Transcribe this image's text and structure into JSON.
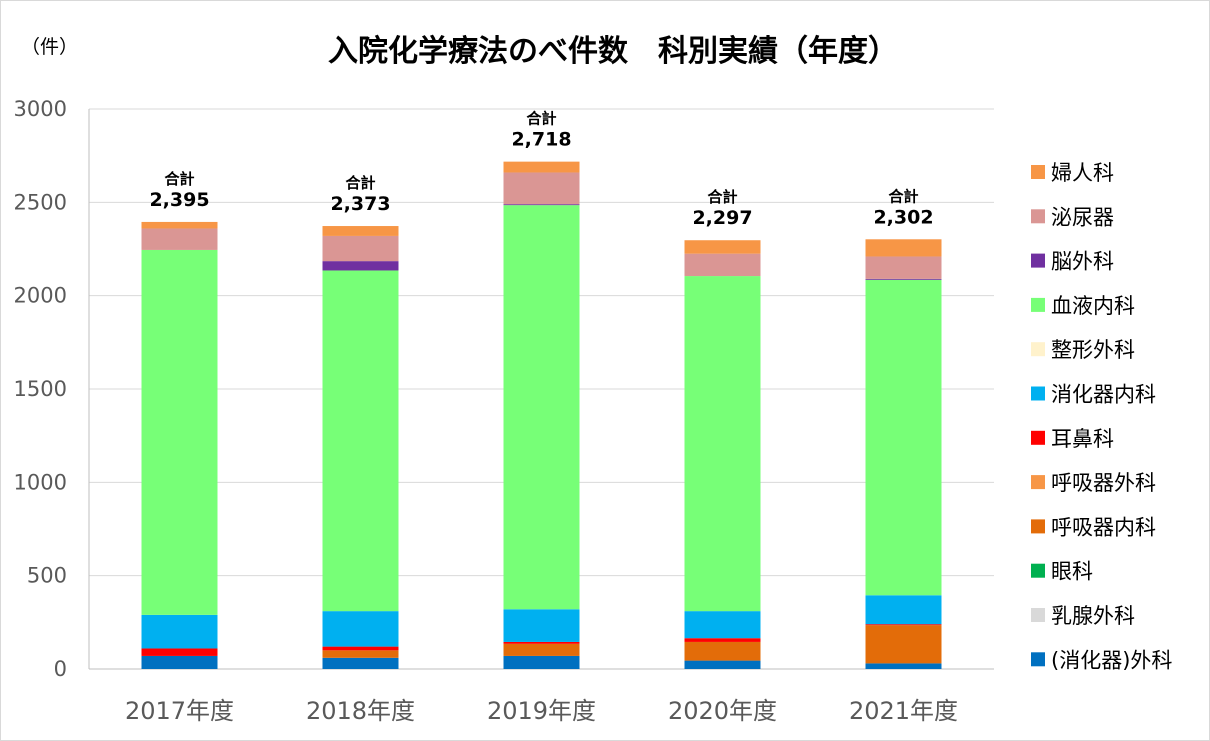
{
  "chart_data": {
    "type": "bar",
    "stacked": true,
    "title": "入院化学療法のべ件数　科別実績（年度）",
    "unit_label": "（件）",
    "categories": [
      "2017年度",
      "2018年度",
      "2019年度",
      "2020年度",
      "2021年度"
    ],
    "ylim": [
      0,
      3000
    ],
    "yticks": [
      0,
      500,
      1000,
      1500,
      2000,
      2500,
      3000
    ],
    "grid": true,
    "legend_position": "right",
    "total_label": "合計",
    "totals": [
      "2,395",
      "2,373",
      "2,718",
      "2,297",
      "2,302"
    ],
    "series": [
      {
        "name": "(消化器)外科",
        "color": "#0070C0",
        "values": [
          70,
          60,
          70,
          45,
          30
        ]
      },
      {
        "name": "乳腺外科",
        "color": "#D9D9D9",
        "values": [
          0,
          0,
          0,
          0,
          0
        ]
      },
      {
        "name": "眼科",
        "color": "#00B050",
        "values": [
          0,
          0,
          0,
          0,
          0
        ]
      },
      {
        "name": "呼吸器内科",
        "color": "#E36C09",
        "values": [
          0,
          40,
          65,
          100,
          205
        ]
      },
      {
        "name": "呼吸器外科",
        "color": "#F79646",
        "values": [
          0,
          0,
          0,
          0,
          0
        ]
      },
      {
        "name": "耳鼻科",
        "color": "#FF0000",
        "values": [
          40,
          20,
          10,
          20,
          5
        ]
      },
      {
        "name": "消化器内科",
        "color": "#00B0F0",
        "values": [
          180,
          190,
          175,
          145,
          155
        ]
      },
      {
        "name": "整形外科",
        "color": "#FFF2CC",
        "values": [
          0,
          0,
          0,
          0,
          0
        ]
      },
      {
        "name": "血液内科",
        "color": "#77FF77",
        "values": [
          1955,
          1825,
          2165,
          1795,
          1690
        ]
      },
      {
        "name": "脳外科",
        "color": "#7030A0",
        "values": [
          0,
          50,
          5,
          0,
          5
        ]
      },
      {
        "name": "泌尿器",
        "color": "#DA9694",
        "values": [
          115,
          135,
          170,
          120,
          120
        ]
      },
      {
        "name": "婦人科",
        "color": "#F79646",
        "values": [
          35,
          53,
          58,
          72,
          92
        ]
      }
    ]
  }
}
